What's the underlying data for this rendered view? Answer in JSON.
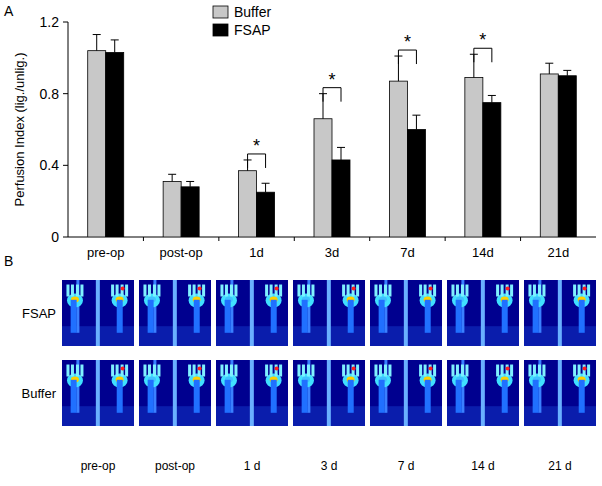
{
  "chart_data": {
    "type": "bar",
    "y_label": "Perfusion Index (lig./unlig.)",
    "categories": [
      "pre-op",
      "post-op",
      "1d",
      "3d",
      "7d",
      "14d",
      "21d"
    ],
    "series": [
      {
        "name": "Buffer",
        "color": "#c8c8c8",
        "values": [
          1.04,
          0.31,
          0.37,
          0.66,
          0.87,
          0.89,
          0.91
        ],
        "errors": [
          0.09,
          0.04,
          0.06,
          0.14,
          0.14,
          0.13,
          0.06
        ]
      },
      {
        "name": "FSAP",
        "color": "#000000",
        "values": [
          1.03,
          0.28,
          0.25,
          0.43,
          0.6,
          0.75,
          0.9
        ],
        "errors": [
          0.07,
          0.03,
          0.05,
          0.07,
          0.08,
          0.04,
          0.03
        ]
      }
    ],
    "ylim": [
      0,
      1.2
    ],
    "yticks": [
      0,
      0.4,
      0.8,
      1.2
    ],
    "legend": "top",
    "annotations": {
      "panel_label": "A",
      "significance": [
        null,
        null,
        "*",
        "*",
        "*",
        "*",
        null
      ]
    }
  },
  "image_panel": {
    "label": "B",
    "rows": [
      "FSAP",
      "Buffer"
    ],
    "columns": [
      "pre-op",
      "post-op",
      "1 d",
      "3 d",
      "7 d",
      "14 d",
      "21 d"
    ]
  }
}
